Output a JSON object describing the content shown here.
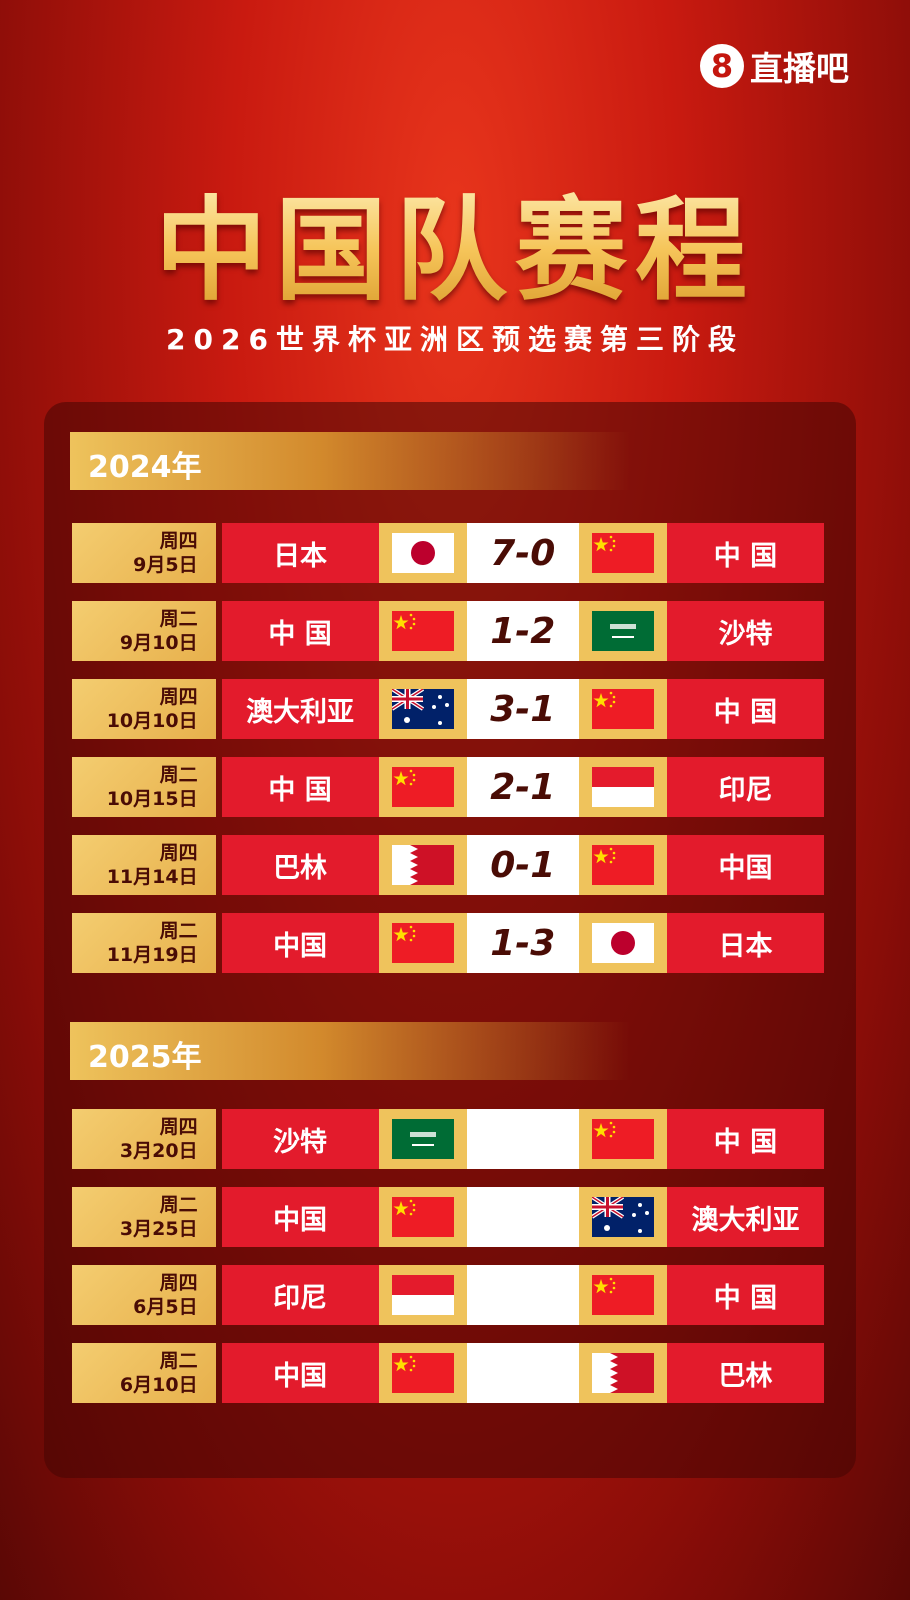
{
  "brand": {
    "logo_mark": "8",
    "name": "直播吧"
  },
  "title": "中国队赛程",
  "subtitle": "2026世界杯亚洲区预选赛第三阶段",
  "sections": [
    {
      "year": "2024年",
      "matches": [
        {
          "weekday": "周四",
          "date": "9月5日",
          "home": "日本",
          "home_flag": "jp",
          "score": "7-0",
          "away": "中 国",
          "away_flag": "cn"
        },
        {
          "weekday": "周二",
          "date": "9月10日",
          "home": "中 国",
          "home_flag": "cn",
          "score": "1-2",
          "away": "沙特",
          "away_flag": "sa"
        },
        {
          "weekday": "周四",
          "date": "10月10日",
          "home": "澳大利亚",
          "home_flag": "au",
          "score": "3-1",
          "away": "中 国",
          "away_flag": "cn"
        },
        {
          "weekday": "周二",
          "date": "10月15日",
          "home": "中 国",
          "home_flag": "cn",
          "score": "2-1",
          "away": "印尼",
          "away_flag": "id"
        },
        {
          "weekday": "周四",
          "date": "11月14日",
          "home": "巴林",
          "home_flag": "bh",
          "score": "0-1",
          "away": "中国",
          "away_flag": "cn"
        },
        {
          "weekday": "周二",
          "date": "11月19日",
          "home": "中国",
          "home_flag": "cn",
          "score": "1-3",
          "away": "日本",
          "away_flag": "jp"
        }
      ]
    },
    {
      "year": "2025年",
      "matches": [
        {
          "weekday": "周四",
          "date": "3月20日",
          "home": "沙特",
          "home_flag": "sa",
          "score": "",
          "away": "中 国",
          "away_flag": "cn"
        },
        {
          "weekday": "周二",
          "date": "3月25日",
          "home": "中国",
          "home_flag": "cn",
          "score": "",
          "away": "澳大利亚",
          "away_flag": "au"
        },
        {
          "weekday": "周四",
          "date": "6月5日",
          "home": "印尼",
          "home_flag": "id",
          "score": "",
          "away": "中 国",
          "away_flag": "cn"
        },
        {
          "weekday": "周二",
          "date": "6月10日",
          "home": "中国",
          "home_flag": "cn",
          "score": "",
          "away": "巴林",
          "away_flag": "bh"
        }
      ]
    }
  ],
  "colors": {
    "team_red": "#e31b2c",
    "gold": "#efc35c",
    "score_text": "#4a0c05"
  }
}
